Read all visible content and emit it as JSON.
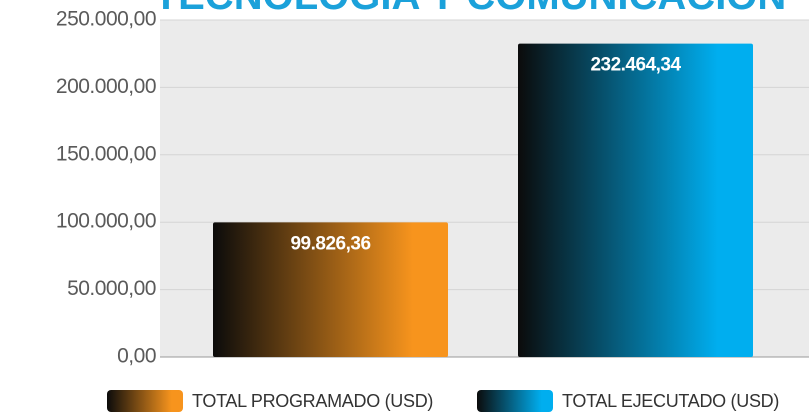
{
  "chart_data": {
    "type": "bar",
    "title": "TECNOLOGÍA Y COMUNICACIÓN",
    "categories": [
      "TOTAL PROGRAMADO (USD)",
      "TOTAL EJECUTADO (USD)"
    ],
    "values": [
      99826.36,
      232464.34
    ],
    "value_labels": [
      "99.826,36",
      "232.464,34"
    ],
    "colors": [
      "#f7941d",
      "#00aeef"
    ],
    "ylim": [
      0,
      250000
    ],
    "yticks": [
      {
        "value": 0,
        "label": "0,00"
      },
      {
        "value": 50000,
        "label": "50.000,00"
      },
      {
        "value": 100000,
        "label": "100.000,00"
      },
      {
        "value": 150000,
        "label": "150.000,00"
      },
      {
        "value": 200000,
        "label": "200.000,00"
      },
      {
        "value": 250000,
        "label": "250.000,00"
      }
    ],
    "grid": true,
    "legend": "bottom"
  }
}
